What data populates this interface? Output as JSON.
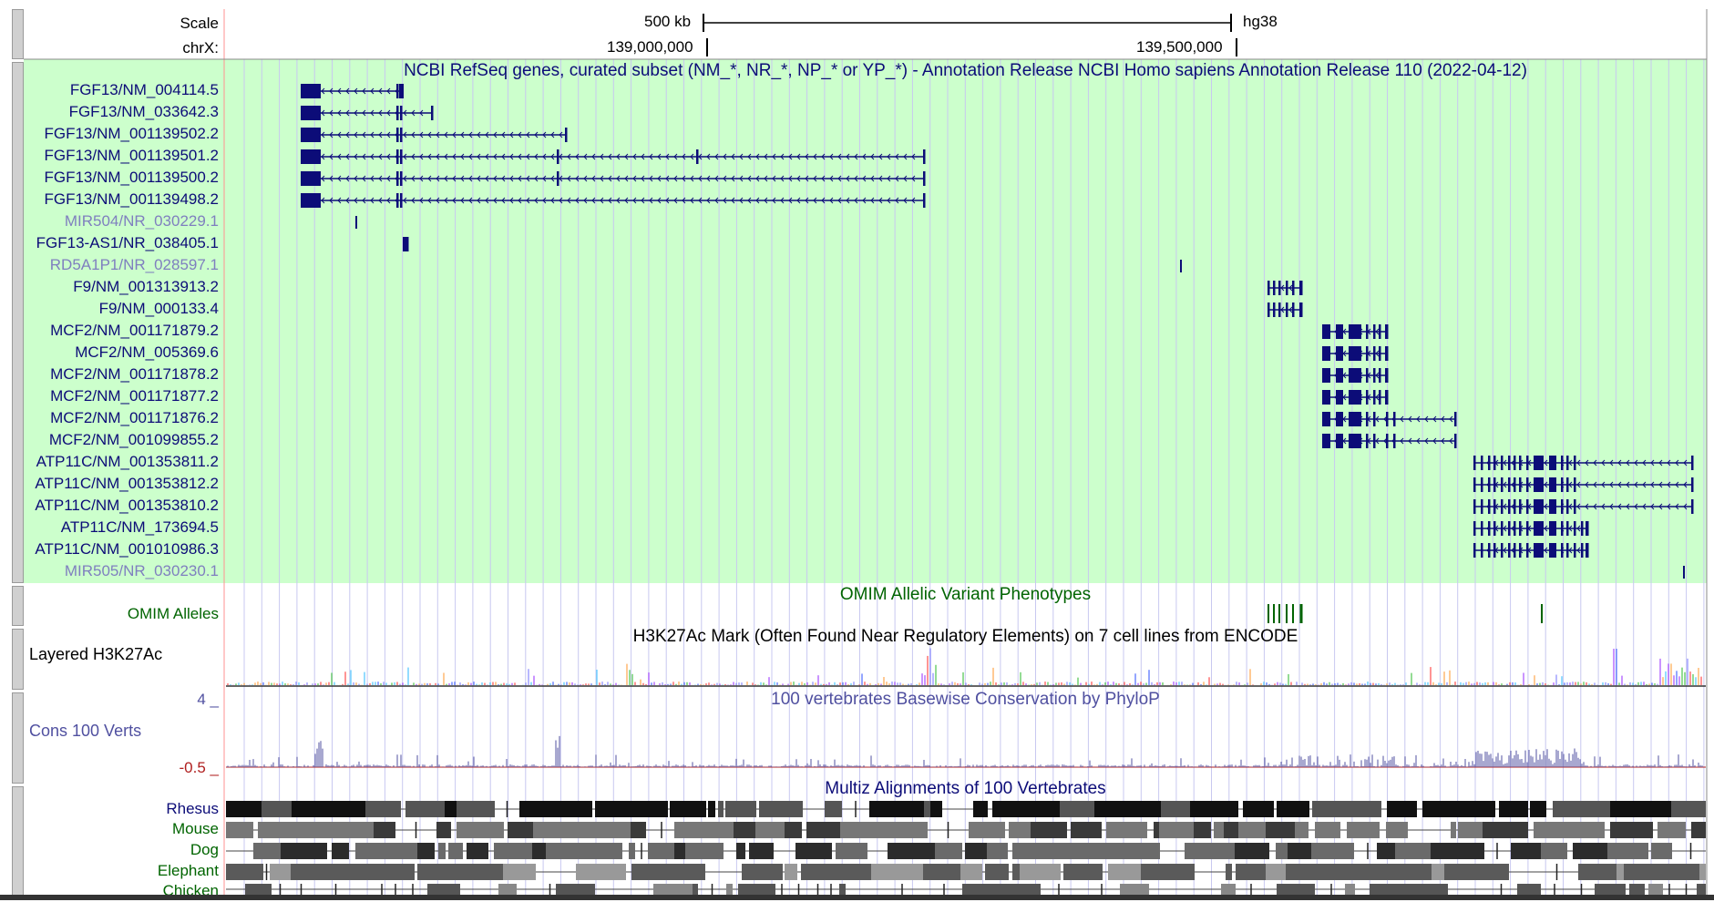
{
  "colors": {
    "refseq_bg": "#ccffcc",
    "gene_color": "#0c0c78",
    "gene_label": "#0c0c78",
    "noncoding_label": "#7f7fbf",
    "omim_color": "#006400",
    "cons_color": "#5050a0",
    "cons_neg": "#b02020",
    "grid_line": "#c8c8f0",
    "left_border": "#ff9090"
  },
  "ruler": {
    "scale_label": "Scale",
    "scale_value": "500 kb",
    "assembly": "hg38",
    "chrom_label": "chrX:",
    "ticks": [
      "139,000,000",
      "139,500,000"
    ]
  },
  "refseq": {
    "title": "NCBI RefSeq genes, curated subset (NM_*, NR_*, NP_* or YP_*) - Annotation Release NCBI Homo sapiens Annotation Release 110 (2022-04-12)",
    "genes": [
      {
        "label": "FGF13/NM_004114.5",
        "type": "coding"
      },
      {
        "label": "FGF13/NM_033642.3",
        "type": "coding"
      },
      {
        "label": "FGF13/NM_001139502.2",
        "type": "coding"
      },
      {
        "label": "FGF13/NM_001139501.2",
        "type": "coding"
      },
      {
        "label": "FGF13/NM_001139500.2",
        "type": "coding"
      },
      {
        "label": "FGF13/NM_001139498.2",
        "type": "coding"
      },
      {
        "label": "MIR504/NR_030229.1",
        "type": "noncoding"
      },
      {
        "label": "FGF13-AS1/NR_038405.1",
        "type": "coding"
      },
      {
        "label": "RD5A1P1/NR_028597.1",
        "type": "noncoding"
      },
      {
        "label": "F9/NM_001313913.2",
        "type": "coding"
      },
      {
        "label": "F9/NM_000133.4",
        "type": "coding"
      },
      {
        "label": "MCF2/NM_001171879.2",
        "type": "coding"
      },
      {
        "label": "MCF2/NM_005369.6",
        "type": "coding"
      },
      {
        "label": "MCF2/NM_001171878.2",
        "type": "coding"
      },
      {
        "label": "MCF2/NM_001171877.2",
        "type": "coding"
      },
      {
        "label": "MCF2/NM_001171876.2",
        "type": "coding"
      },
      {
        "label": "MCF2/NM_001099855.2",
        "type": "coding"
      },
      {
        "label": "ATP11C/NM_001353811.2",
        "type": "coding"
      },
      {
        "label": "ATP11C/NM_001353812.2",
        "type": "coding"
      },
      {
        "label": "ATP11C/NM_001353810.2",
        "type": "coding"
      },
      {
        "label": "ATP11C/NM_173694.5",
        "type": "coding"
      },
      {
        "label": "ATP11C/NM_001010986.3",
        "type": "coding"
      },
      {
        "label": "MIR505/NR_030230.1",
        "type": "noncoding"
      }
    ]
  },
  "omim": {
    "title": "OMIM Allelic Variant Phenotypes",
    "label": "OMIM Alleles"
  },
  "h3k27ac": {
    "title": "H3K27Ac Mark (Often Found Near Regulatory Elements) on 7 cell lines from ENCODE",
    "label": "Layered H3K27Ac"
  },
  "cons": {
    "title": "100 vertebrates Basewise Conservation by PhyloP",
    "label": "Cons 100 Verts",
    "max": "4 _",
    "min": "-0.5 _"
  },
  "multiz": {
    "title": "Multiz Alignments of 100 Vertebrates",
    "species": [
      "Rhesus",
      "Mouse",
      "Dog",
      "Elephant",
      "Chicken"
    ]
  }
}
